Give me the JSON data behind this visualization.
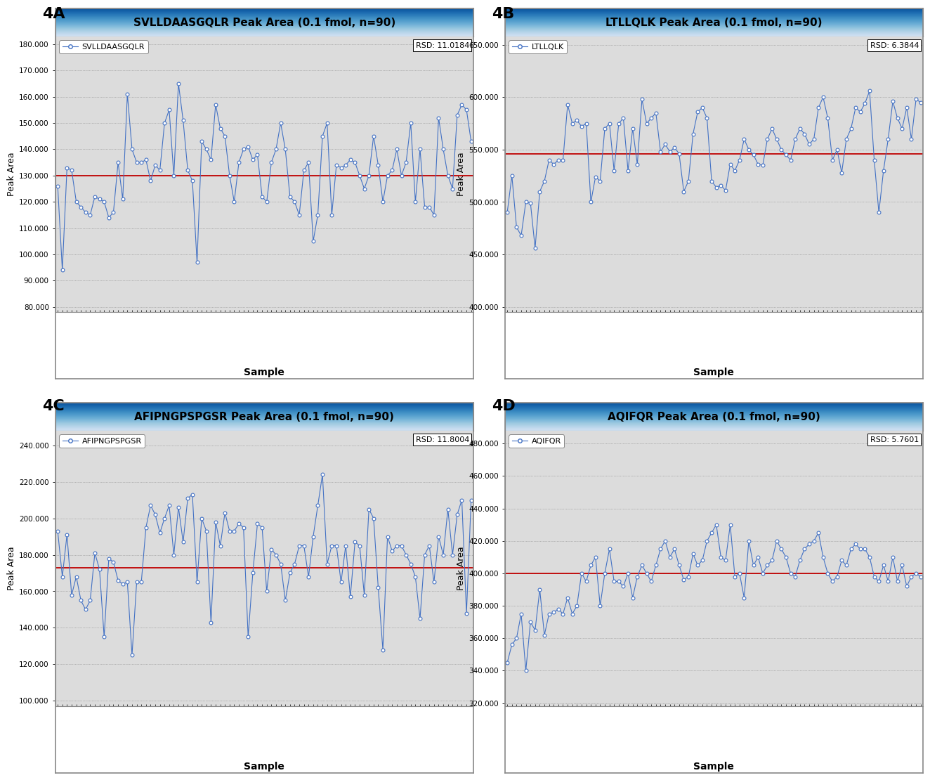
{
  "panels": [
    {
      "label": "4A",
      "title": "SVLLDAASGQLR Peak Area (0.1 fmol, n=90)",
      "peptide": "SVLLDAASGQLR",
      "rsd": "RSD: 11.0184",
      "mean": 130000,
      "ylim": [
        78000,
        183000
      ],
      "yticks": [
        80000,
        90000,
        100000,
        110000,
        120000,
        130000,
        140000,
        150000,
        160000,
        170000,
        180000
      ],
      "ytick_labels": [
        "80.000",
        "90.000",
        "100.000",
        "110.000",
        "120.000",
        "130.000",
        "140.000",
        "150.000",
        "160.000",
        "170.000",
        "180.000"
      ],
      "data": [
        126000,
        94000,
        133000,
        132000,
        120000,
        118000,
        116000,
        115000,
        122000,
        121000,
        120000,
        114000,
        116000,
        135000,
        121000,
        161000,
        140000,
        135000,
        135000,
        136000,
        128000,
        134000,
        132000,
        150000,
        155000,
        130000,
        165000,
        151000,
        132000,
        128000,
        97000,
        143000,
        140000,
        136000,
        157000,
        148000,
        145000,
        130000,
        120000,
        135000,
        140000,
        141000,
        136000,
        138000,
        122000,
        120000,
        135000,
        140000,
        150000,
        140000,
        122000,
        120000,
        115000,
        132000,
        135000,
        105000,
        115000,
        145000,
        150000,
        115000,
        134000,
        133000,
        134000,
        136000,
        135000,
        130000,
        125000,
        130000,
        145000,
        134000,
        120000,
        130000,
        132000,
        140000,
        130000,
        135000,
        150000,
        120000,
        140000,
        118000,
        118000,
        115000,
        152000,
        140000,
        130000,
        125000,
        153000,
        157000,
        155000,
        143000
      ]
    },
    {
      "label": "4B",
      "title": "LTLLQLK Peak Area (0.1 fmol, n=90)",
      "peptide": "LTLLQLK",
      "rsd": "RSD: 6.3844",
      "mean": 546000,
      "ylim": [
        395000,
        658000
      ],
      "yticks": [
        400000,
        450000,
        500000,
        550000,
        600000,
        650000
      ],
      "ytick_labels": [
        "400.000",
        "450.000",
        "500.000",
        "550.000",
        "600.000",
        "650.000"
      ],
      "data": [
        490000,
        525000,
        476000,
        468000,
        500000,
        499000,
        456000,
        510000,
        520000,
        540000,
        536000,
        540000,
        540000,
        593000,
        575000,
        578000,
        572000,
        575000,
        500000,
        524000,
        520000,
        570000,
        575000,
        530000,
        575000,
        580000,
        530000,
        570000,
        536000,
        598000,
        575000,
        580000,
        585000,
        548000,
        555000,
        548000,
        552000,
        546000,
        510000,
        520000,
        565000,
        586000,
        590000,
        580000,
        520000,
        514000,
        516000,
        511000,
        536000,
        530000,
        540000,
        560000,
        550000,
        545000,
        536000,
        535000,
        560000,
        570000,
        560000,
        550000,
        545000,
        540000,
        560000,
        570000,
        565000,
        555000,
        560000,
        590000,
        600000,
        580000,
        540000,
        550000,
        528000,
        560000,
        570000,
        590000,
        586000,
        594000,
        606000,
        540000,
        490000,
        530000,
        560000,
        596000,
        580000,
        570000,
        590000,
        560000,
        598000,
        595000
      ]
    },
    {
      "label": "4C",
      "title": "AFIPNGPSPGSR Peak Area (0.1 fmol, n=90)",
      "peptide": "AFIPNGPSPGSR",
      "rsd": "RSD: 11.8004",
      "mean": 173000,
      "ylim": [
        97000,
        248000
      ],
      "yticks": [
        100000,
        120000,
        140000,
        160000,
        180000,
        200000,
        220000,
        240000
      ],
      "ytick_labels": [
        "100.000",
        "120.000",
        "140.000",
        "160.000",
        "180.000",
        "200.000",
        "220.000",
        "240.000"
      ],
      "data": [
        193000,
        168000,
        191000,
        158000,
        168000,
        155000,
        150000,
        155000,
        181000,
        172000,
        135000,
        178000,
        176000,
        166000,
        164000,
        165000,
        125000,
        165000,
        165000,
        195000,
        207000,
        202000,
        192000,
        200000,
        207000,
        180000,
        206000,
        187000,
        211000,
        213000,
        165000,
        200000,
        193000,
        143000,
        198000,
        185000,
        203000,
        193000,
        193000,
        197000,
        195000,
        135000,
        170000,
        197000,
        195000,
        160000,
        183000,
        180000,
        175000,
        155000,
        170000,
        175000,
        185000,
        185000,
        168000,
        190000,
        207000,
        224000,
        175000,
        185000,
        185000,
        165000,
        185000,
        157000,
        187000,
        185000,
        158000,
        205000,
        200000,
        162000,
        128000,
        190000,
        182000,
        185000,
        185000,
        180000,
        175000,
        168000,
        145000,
        180000,
        185000,
        165000,
        190000,
        180000,
        205000,
        180000,
        202000,
        210000,
        148000,
        210000
      ]
    },
    {
      "label": "4D",
      "title": "AQIFQR Peak Area (0.1 fmol, n=90)",
      "peptide": "AQIFQR",
      "rsd": "RSD: 5.7601",
      "mean": 400000,
      "ylim": [
        318000,
        488000
      ],
      "yticks": [
        320000,
        340000,
        360000,
        380000,
        400000,
        420000,
        440000,
        460000,
        480000
      ],
      "ytick_labels": [
        "320.000",
        "340.000",
        "360.000",
        "380.000",
        "400.000",
        "420.000",
        "440.000",
        "460.000",
        "480.000"
      ],
      "data": [
        345000,
        356000,
        360000,
        375000,
        340000,
        370000,
        365000,
        390000,
        362000,
        375000,
        376000,
        378000,
        375000,
        385000,
        375000,
        380000,
        400000,
        395000,
        405000,
        410000,
        380000,
        400000,
        415000,
        395000,
        395000,
        392000,
        400000,
        385000,
        398000,
        405000,
        400000,
        395000,
        405000,
        415000,
        420000,
        410000,
        415000,
        405000,
        396000,
        398000,
        412000,
        405000,
        408000,
        420000,
        425000,
        430000,
        410000,
        408000,
        430000,
        398000,
        400000,
        385000,
        420000,
        405000,
        410000,
        400000,
        405000,
        408000,
        420000,
        415000,
        410000,
        400000,
        398000,
        408000,
        415000,
        418000,
        420000,
        425000,
        410000,
        400000,
        395000,
        398000,
        408000,
        405000,
        415000,
        418000,
        415000,
        415000,
        410000,
        398000,
        395000,
        405000,
        395000,
        410000,
        395000,
        405000,
        392000,
        398000,
        400000,
        398000
      ]
    }
  ],
  "line_color": "#4472C4",
  "mean_line_color": "#C00000",
  "plot_bg_color": "#DCDCDC",
  "title_color_light": "#C8DFF0",
  "title_color_dark": "#87CEEB",
  "panel_label_fontsize": 16,
  "title_fontsize": 11,
  "axis_label_fontsize": 9,
  "tick_fontsize": 7.5,
  "legend_fontsize": 8,
  "rsd_fontsize": 8,
  "outer_bg": "#FFFFFF",
  "border_color": "#888888"
}
